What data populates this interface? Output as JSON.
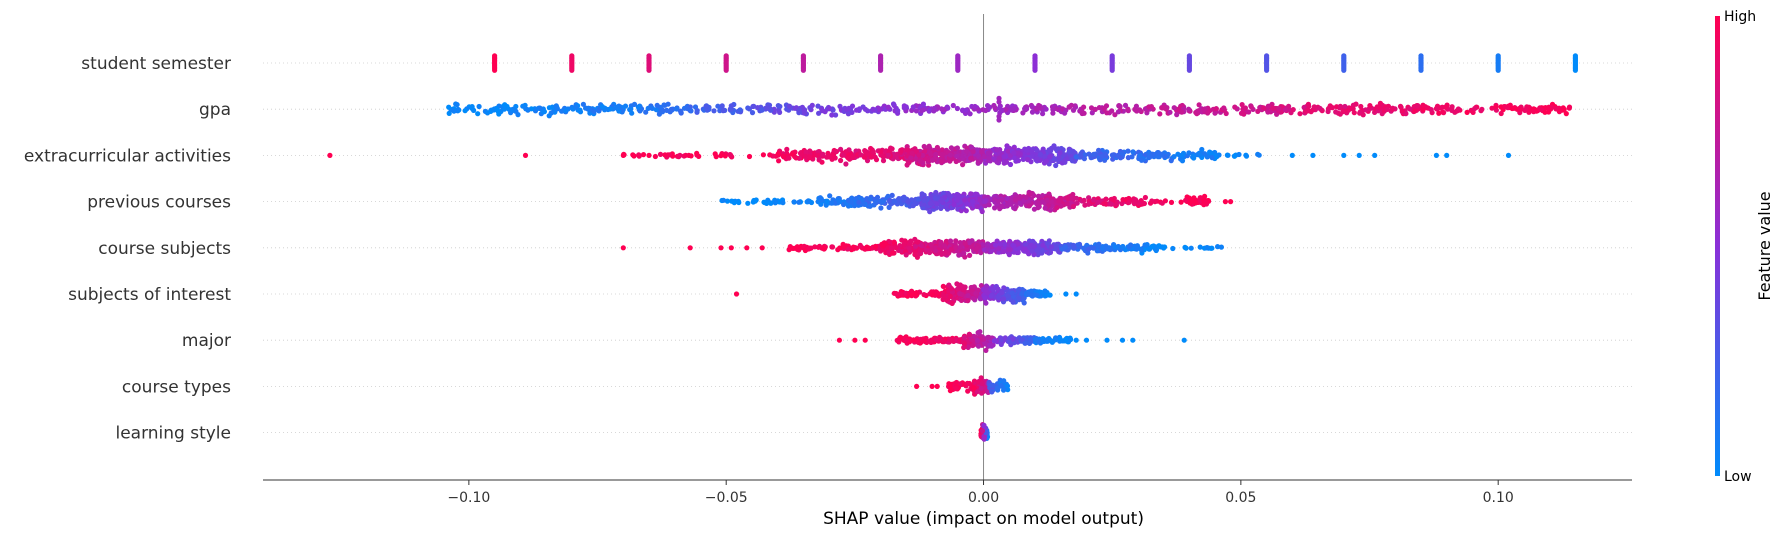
{
  "chart_data": {
    "type": "scatter",
    "subtype": "shap-beeswarm",
    "xlabel": "SHAP value (impact on model output)",
    "xlim": [
      -0.14,
      0.126
    ],
    "xticks": [
      -0.1,
      -0.05,
      0.0,
      0.05,
      0.1
    ],
    "xtick_labels": [
      "−0.10",
      "−0.05",
      "0.00",
      "0.05",
      "0.10"
    ],
    "grid": false,
    "colorbar": {
      "title": "Feature value",
      "high_label": "High",
      "low_label": "Low",
      "low_color": "#008bfb",
      "mid_color": "#8a30d8",
      "high_color": "#ff0052"
    },
    "features": [
      {
        "name": "student semester",
        "points": [
          {
            "x": -0.095,
            "c": 1.0
          },
          {
            "x": -0.08,
            "c": 0.93
          },
          {
            "x": -0.065,
            "c": 0.86
          },
          {
            "x": -0.05,
            "c": 0.79
          },
          {
            "x": -0.035,
            "c": 0.72
          },
          {
            "x": -0.02,
            "c": 0.65
          },
          {
            "x": -0.005,
            "c": 0.58
          },
          {
            "x": 0.01,
            "c": 0.51
          },
          {
            "x": 0.025,
            "c": 0.44
          },
          {
            "x": 0.04,
            "c": 0.37
          },
          {
            "x": 0.055,
            "c": 0.3
          },
          {
            "x": 0.07,
            "c": 0.23
          },
          {
            "x": 0.085,
            "c": 0.16
          },
          {
            "x": 0.1,
            "c": 0.08
          },
          {
            "x": 0.115,
            "c": 0.0
          }
        ]
      },
      {
        "name": "gpa",
        "segments": [
          {
            "x0": -0.104,
            "x1": -0.062,
            "n": 150,
            "c0": 0.0,
            "c1": 0.12,
            "w": 0.6
          },
          {
            "x0": -0.062,
            "x1": -0.04,
            "n": 70,
            "c0": 0.15,
            "c1": 0.35,
            "w": 0.5
          },
          {
            "x0": -0.04,
            "x1": -0.01,
            "n": 100,
            "c0": 0.35,
            "c1": 0.55,
            "w": 0.6
          },
          {
            "x0": -0.01,
            "x1": 0.015,
            "n": 90,
            "c0": 0.55,
            "c1": 0.62,
            "w": 0.5
          },
          {
            "x0": 0.015,
            "x1": 0.06,
            "n": 160,
            "c0": 0.65,
            "c1": 0.82,
            "w": 0.6
          },
          {
            "x0": 0.06,
            "x1": 0.114,
            "n": 200,
            "c0": 0.85,
            "c1": 1.0,
            "w": 0.55
          }
        ],
        "points": [
          {
            "x": 0.003,
            "c": 0.6,
            "dy": -0.9
          },
          {
            "x": 0.003,
            "c": 0.6,
            "dy": -0.6
          },
          {
            "x": 0.003,
            "c": 0.6,
            "dy": 0.6
          },
          {
            "x": 0.003,
            "c": 0.6,
            "dy": 0.9
          }
        ]
      },
      {
        "name": "extracurricular activities",
        "segments": [
          {
            "x0": -0.07,
            "x1": -0.04,
            "n": 40,
            "c0": 1.0,
            "c1": 0.95,
            "w": 0.2
          },
          {
            "x0": -0.04,
            "x1": -0.015,
            "n": 160,
            "c0": 0.95,
            "c1": 0.85,
            "w": 0.8
          },
          {
            "x0": -0.015,
            "x1": 0.0,
            "n": 320,
            "c0": 0.82,
            "c1": 0.65,
            "w": 1.0
          },
          {
            "x0": 0.0,
            "x1": 0.018,
            "n": 260,
            "c0": 0.6,
            "c1": 0.35,
            "w": 1.0
          },
          {
            "x0": 0.018,
            "x1": 0.045,
            "n": 120,
            "c0": 0.25,
            "c1": 0.05,
            "w": 0.55
          },
          {
            "x0": 0.045,
            "x1": 0.055,
            "n": 12,
            "c0": 0.05,
            "c1": 0.0,
            "w": 0.15
          }
        ],
        "points": [
          {
            "x": -0.127,
            "c": 1.0
          },
          {
            "x": -0.089,
            "c": 1.0
          },
          {
            "x": -0.07,
            "c": 1.0
          },
          {
            "x": -0.065,
            "c": 1.0
          },
          {
            "x": 0.06,
            "c": 0.0
          },
          {
            "x": 0.064,
            "c": 0.0
          },
          {
            "x": 0.07,
            "c": 0.0
          },
          {
            "x": 0.073,
            "c": 0.0
          },
          {
            "x": 0.076,
            "c": 0.0
          },
          {
            "x": 0.088,
            "c": 0.0
          },
          {
            "x": 0.09,
            "c": 0.0
          },
          {
            "x": 0.102,
            "c": 0.0
          }
        ]
      },
      {
        "name": "previous courses",
        "segments": [
          {
            "x0": -0.051,
            "x1": -0.032,
            "n": 40,
            "c0": 0.0,
            "c1": 0.05,
            "w": 0.2
          },
          {
            "x0": -0.032,
            "x1": -0.012,
            "n": 150,
            "c0": 0.05,
            "c1": 0.3,
            "w": 0.6
          },
          {
            "x0": -0.012,
            "x1": 0.0,
            "n": 260,
            "c0": 0.35,
            "c1": 0.55,
            "w": 1.0
          },
          {
            "x0": 0.0,
            "x1": 0.018,
            "n": 230,
            "c0": 0.6,
            "c1": 0.8,
            "w": 0.9
          },
          {
            "x0": 0.018,
            "x1": 0.044,
            "n": 110,
            "c0": 0.85,
            "c1": 1.0,
            "w": 0.5
          }
        ],
        "points": [
          {
            "x": 0.047,
            "c": 1.0
          },
          {
            "x": 0.048,
            "c": 1.0
          }
        ]
      },
      {
        "name": "course subjects",
        "segments": [
          {
            "x0": -0.038,
            "x1": -0.02,
            "n": 60,
            "c0": 1.0,
            "c1": 0.95,
            "w": 0.3
          },
          {
            "x0": -0.02,
            "x1": 0.0,
            "n": 250,
            "c0": 0.95,
            "c1": 0.7,
            "w": 0.9
          },
          {
            "x0": 0.0,
            "x1": 0.015,
            "n": 200,
            "c0": 0.6,
            "c1": 0.35,
            "w": 0.8
          },
          {
            "x0": 0.015,
            "x1": 0.035,
            "n": 110,
            "c0": 0.25,
            "c1": 0.0,
            "w": 0.45
          },
          {
            "x0": 0.035,
            "x1": 0.047,
            "n": 14,
            "c0": 0.0,
            "c1": 0.0,
            "w": 0.15
          }
        ],
        "points": [
          {
            "x": -0.07,
            "c": 1.0
          },
          {
            "x": -0.057,
            "c": 1.0
          },
          {
            "x": -0.051,
            "c": 1.0
          },
          {
            "x": -0.049,
            "c": 1.0
          },
          {
            "x": -0.046,
            "c": 1.0
          },
          {
            "x": -0.043,
            "c": 1.0
          }
        ]
      },
      {
        "name": "subjects of interest",
        "segments": [
          {
            "x0": -0.018,
            "x1": -0.008,
            "n": 40,
            "c0": 1.0,
            "c1": 0.95,
            "w": 0.3
          },
          {
            "x0": -0.008,
            "x1": 0.0,
            "n": 160,
            "c0": 0.95,
            "c1": 0.65,
            "w": 1.0
          },
          {
            "x0": 0.0,
            "x1": 0.008,
            "n": 140,
            "c0": 0.55,
            "c1": 0.2,
            "w": 0.9
          },
          {
            "x0": 0.008,
            "x1": 0.013,
            "n": 40,
            "c0": 0.15,
            "c1": 0.0,
            "w": 0.35
          }
        ],
        "points": [
          {
            "x": -0.048,
            "c": 1.0
          },
          {
            "x": 0.016,
            "c": 0.0
          },
          {
            "x": 0.018,
            "c": 0.0
          }
        ]
      },
      {
        "name": "major",
        "segments": [
          {
            "x0": -0.017,
            "x1": -0.004,
            "n": 90,
            "c0": 1.0,
            "c1": 0.9,
            "w": 0.35
          },
          {
            "x0": -0.004,
            "x1": 0.002,
            "n": 80,
            "c0": 0.85,
            "c1": 0.6,
            "w": 0.9
          },
          {
            "x0": 0.002,
            "x1": 0.01,
            "n": 70,
            "c0": 0.5,
            "c1": 0.2,
            "w": 0.45
          },
          {
            "x0": 0.01,
            "x1": 0.017,
            "n": 50,
            "c0": 0.1,
            "c1": 0.0,
            "w": 0.3
          }
        ],
        "points": [
          {
            "x": -0.028,
            "c": 1.0
          },
          {
            "x": -0.025,
            "c": 1.0
          },
          {
            "x": -0.023,
            "c": 1.0
          },
          {
            "x": 0.018,
            "c": 0.0
          },
          {
            "x": 0.02,
            "c": 0.0
          },
          {
            "x": 0.024,
            "c": 0.0
          },
          {
            "x": 0.027,
            "c": 0.0
          },
          {
            "x": 0.029,
            "c": 0.0
          },
          {
            "x": 0.039,
            "c": 0.0
          }
        ]
      },
      {
        "name": "course types",
        "segments": [
          {
            "x0": -0.007,
            "x1": -0.002,
            "n": 40,
            "c0": 1.0,
            "c1": 0.95,
            "w": 0.5
          },
          {
            "x0": -0.002,
            "x1": 0.001,
            "n": 80,
            "c0": 0.95,
            "c1": 0.7,
            "w": 1.0
          },
          {
            "x0": 0.001,
            "x1": 0.005,
            "n": 40,
            "c0": 0.3,
            "c1": 0.0,
            "w": 0.6
          }
        ],
        "points": [
          {
            "x": -0.013,
            "c": 1.0
          },
          {
            "x": -0.01,
            "c": 1.0
          },
          {
            "x": -0.009,
            "c": 1.0
          }
        ]
      },
      {
        "name": "learning style",
        "segments": [
          {
            "x0": -0.0005,
            "x1": 0.0008,
            "n": 60,
            "c0": 1.0,
            "c1": 0.0,
            "w": 0.9
          }
        ]
      }
    ]
  }
}
